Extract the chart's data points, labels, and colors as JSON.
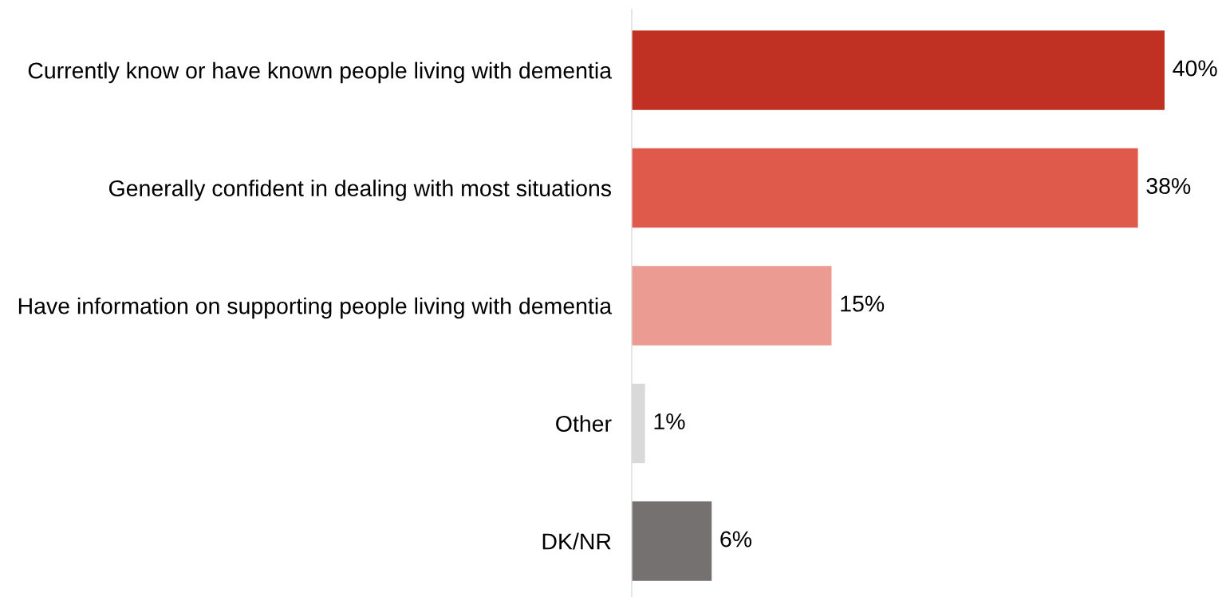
{
  "chart_data": {
    "type": "bar",
    "orientation": "horizontal",
    "categories": [
      "Currently know or have known people living with dementia",
      "Generally confident in dealing with most situations",
      "Have information on supporting people living with dementia",
      "Other",
      "DK/NR"
    ],
    "values": [
      40,
      38,
      15,
      1,
      6
    ],
    "colors": [
      "#c03023",
      "#e05a4b",
      "#eb9b92",
      "#d9d9d9",
      "#767171"
    ],
    "value_labels": [
      "40%",
      "38%",
      "15%",
      "1%",
      "6%"
    ],
    "grid": false,
    "legend": false
  }
}
